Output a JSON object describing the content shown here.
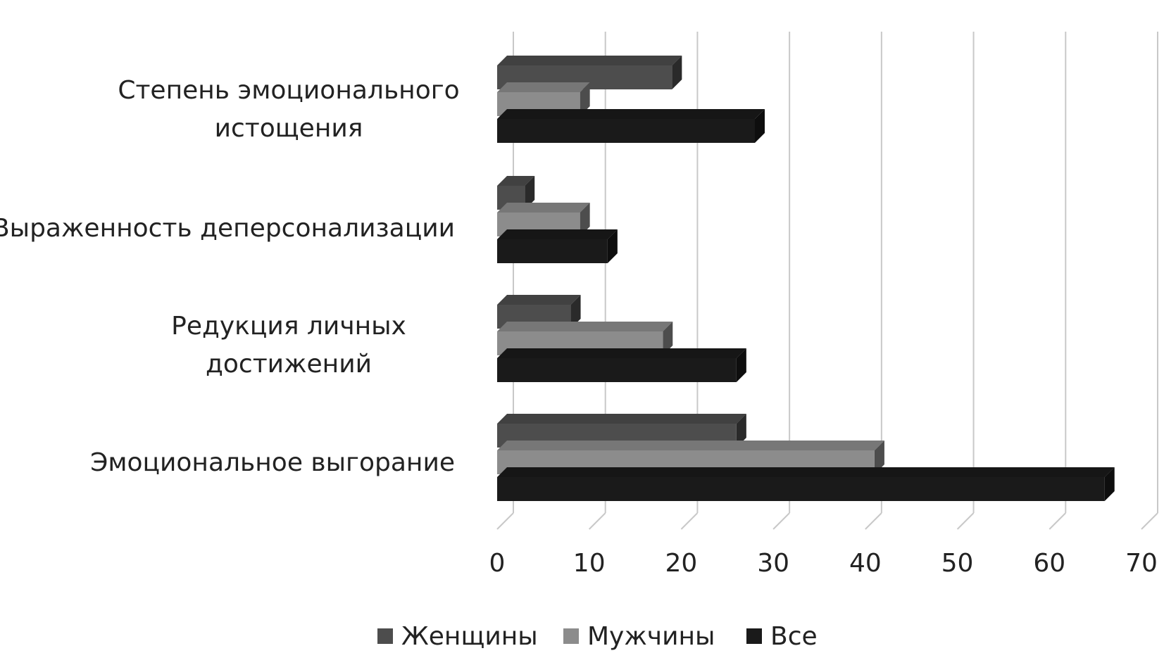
{
  "chart_data": {
    "type": "bar",
    "orientation": "horizontal",
    "style": "3d",
    "categories": [
      [
        "Степень эмоционального",
        "истощения"
      ],
      [
        "Выраженность деперсонализации"
      ],
      [
        "Редукция личных",
        "достижений"
      ],
      [
        "Эмоциональное выгорание"
      ]
    ],
    "series": [
      {
        "name": "Женщины",
        "color": "#4d4d4d",
        "values": [
          19,
          3,
          8,
          26
        ]
      },
      {
        "name": "Мужчины",
        "color": "#8c8c8c",
        "values": [
          9,
          9,
          18,
          41
        ]
      },
      {
        "name": "Все",
        "color": "#1a1a1a",
        "values": [
          28,
          12,
          26,
          66
        ]
      }
    ],
    "x_ticks": [
      "0",
      "10",
      "20",
      "30",
      "40",
      "50",
      "60",
      "70"
    ],
    "xlim": [
      0,
      70
    ],
    "grid": true,
    "legend_position": "bottom"
  }
}
